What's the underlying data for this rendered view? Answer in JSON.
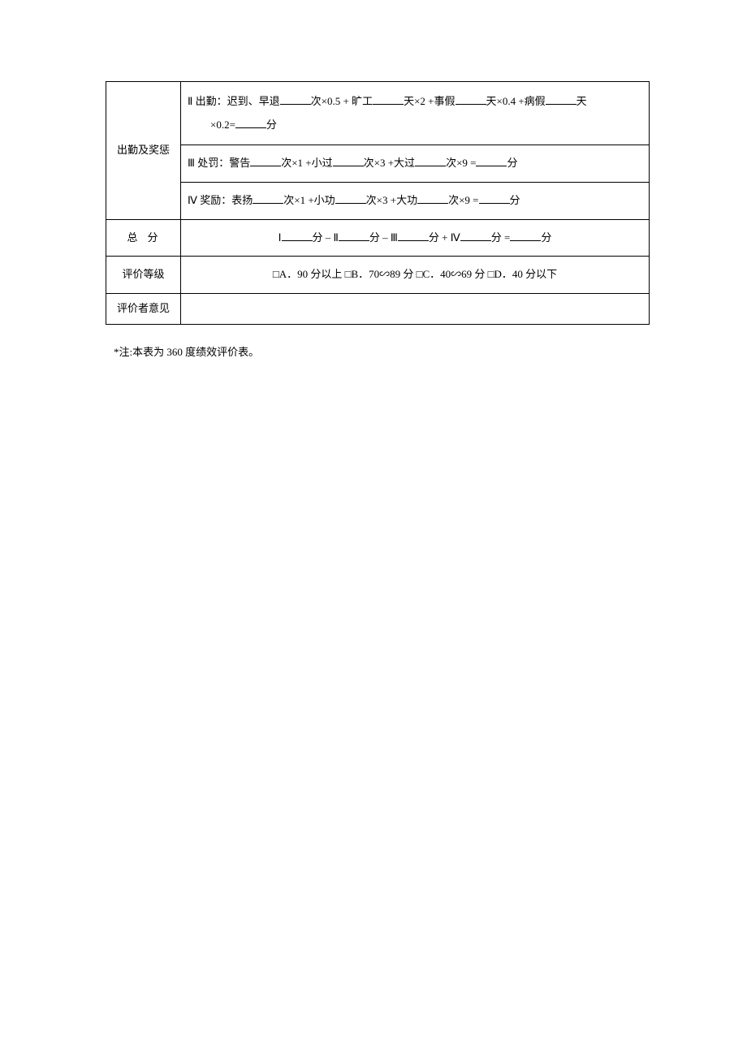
{
  "rows": {
    "attendance_rewards": {
      "label": "出勤及奖惩",
      "line_attendance_prefix": "Ⅱ 出勤：迟到、早退",
      "attendance_part1": "次×0.5 + 旷工",
      "attendance_part2": "天×2 +事假",
      "attendance_part3": "天×0.4 +病假",
      "attendance_unit_day": "天",
      "attendance_suffix_prefix": "×0.2=",
      "attendance_suffix_unit": "分",
      "penalty_prefix": "Ⅲ 处罚：警告",
      "penalty_part1": "次×1 +小过",
      "penalty_part2": "次×3 +大过",
      "penalty_part3": "次×9 =",
      "penalty_unit": "分",
      "reward_prefix": "Ⅳ 奖励：表扬",
      "reward_part1": "次×1 +小功",
      "reward_part2": "次×3 +大功",
      "reward_part3": "次×9 =",
      "reward_unit": "分"
    },
    "total": {
      "label": "总分",
      "formula_i": "Ⅰ",
      "formula_sep1": "分 – Ⅱ",
      "formula_sep2": "分 – Ⅲ",
      "formula_sep3": "分 + Ⅳ",
      "formula_sep4": "分 =",
      "formula_unit": "分"
    },
    "grade": {
      "label": "评价等级",
      "text": "□A．90 分以上  □B．70∽89 分  □C．40∽69 分  □D．40 分以下"
    },
    "opinion": {
      "label": "评价者意见"
    }
  },
  "footnote": "*注:本表为 360 度绩效评价表。"
}
